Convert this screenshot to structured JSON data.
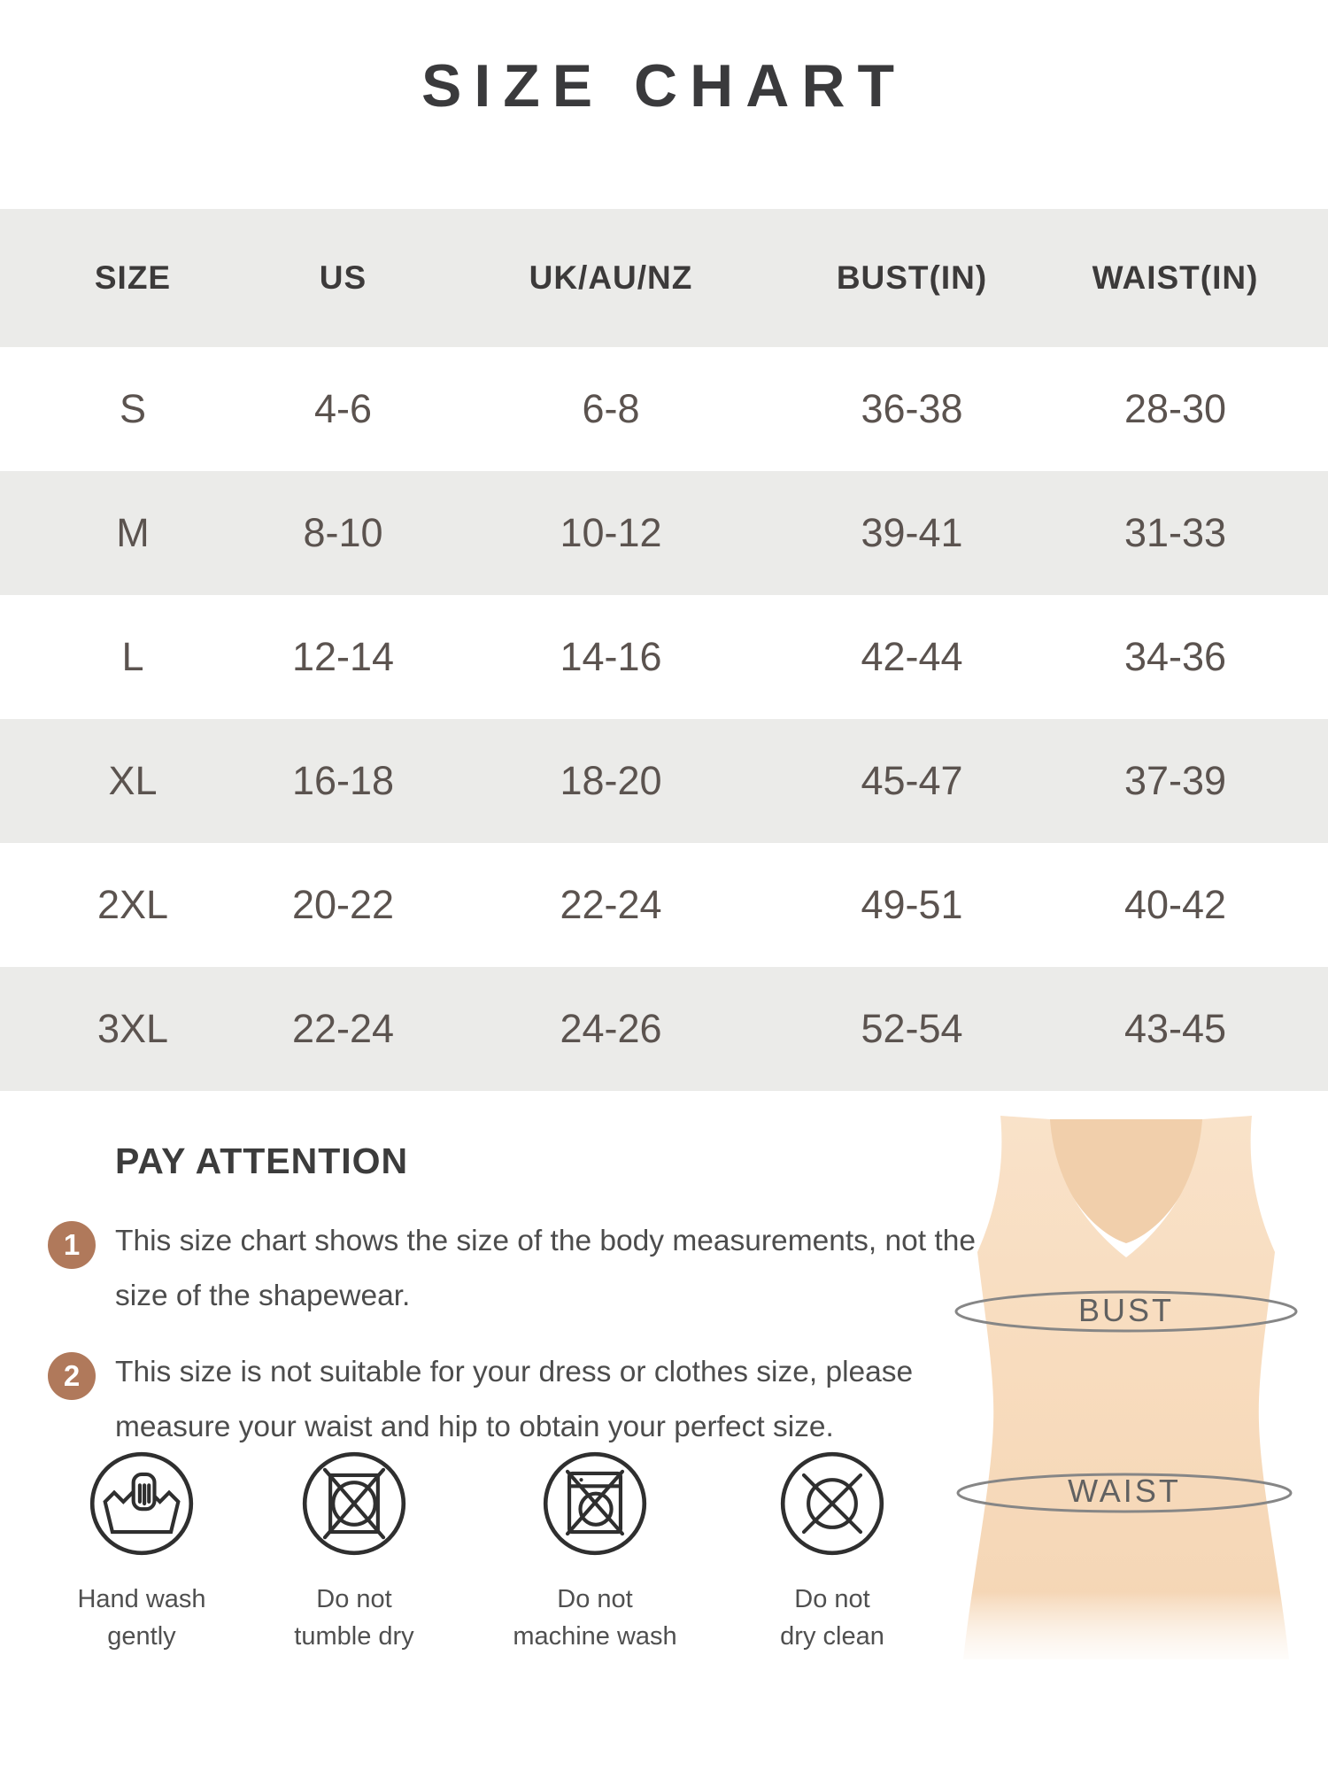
{
  "title": "SIZE CHART",
  "table": {
    "headers": [
      "SIZE",
      "US",
      "UK/AU/NZ",
      "BUST(IN)",
      "WAIST(IN)"
    ],
    "rows": [
      [
        "S",
        "4-6",
        "6-8",
        "36-38",
        "28-30"
      ],
      [
        "M",
        "8-10",
        "10-12",
        "39-41",
        "31-33"
      ],
      [
        "L",
        "12-14",
        "14-16",
        "42-44",
        "34-36"
      ],
      [
        "XL",
        "16-18",
        "18-20",
        "45-47",
        "37-39"
      ],
      [
        "2XL",
        "20-22",
        "22-24",
        "49-51",
        "40-42"
      ],
      [
        "3XL",
        "22-24",
        "24-26",
        "52-54",
        "43-45"
      ]
    ]
  },
  "chart_data": {
    "type": "table",
    "title": "SIZE CHART",
    "columns": [
      "SIZE",
      "US",
      "UK/AU/NZ",
      "BUST(IN)",
      "WAIST(IN)"
    ],
    "rows": [
      [
        "S",
        "4-6",
        "6-8",
        "36-38",
        "28-30"
      ],
      [
        "M",
        "8-10",
        "10-12",
        "39-41",
        "31-33"
      ],
      [
        "L",
        "12-14",
        "14-16",
        "42-44",
        "34-36"
      ],
      [
        "XL",
        "16-18",
        "18-20",
        "45-47",
        "37-39"
      ],
      [
        "2XL",
        "20-22",
        "22-24",
        "49-51",
        "40-42"
      ],
      [
        "3XL",
        "22-24",
        "24-26",
        "52-54",
        "43-45"
      ]
    ]
  },
  "attention": {
    "heading": "PAY ATTENTION",
    "notes": [
      {
        "num": "1",
        "text": "This size chart shows the size of the body measurements, not the size of the shapewear."
      },
      {
        "num": "2",
        "text": "This size is not suitable for your dress or clothes size, please measure your waist and hip to obtain your perfect size."
      }
    ]
  },
  "care": [
    {
      "icon": "hand-wash-icon",
      "lines": [
        "Hand wash",
        "gently"
      ]
    },
    {
      "icon": "do-not-tumble-dry-icon",
      "lines": [
        "Do not",
        "tumble dry"
      ]
    },
    {
      "icon": "do-not-machine-wash-icon",
      "lines": [
        "Do not",
        "machine wash"
      ]
    },
    {
      "icon": "do-not-dry-clean-icon",
      "lines": [
        "Do not",
        "dry clean"
      ]
    }
  ],
  "figure": {
    "bust_label": "BUST",
    "waist_label": "WAIST"
  },
  "colors": {
    "row_band": "#ebebe9",
    "badge_brown": "#b0795b",
    "garment_beige": "#f8dcbe",
    "heading_text": "#3a3a3c",
    "cell_text": "#5b534f",
    "ellipse_line": "#868686"
  }
}
